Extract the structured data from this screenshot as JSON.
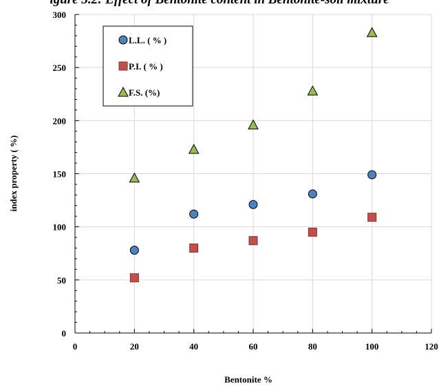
{
  "page": {
    "title": "igure 3.2: Effect of Bentonite content in Bentonite-soil mixture"
  },
  "colors": {
    "ll": "#4f81bd",
    "pi": "#c0504d",
    "fs": "#9bbb59",
    "grid": "#d9d9d9",
    "axis": "#000000"
  },
  "chart_data": {
    "type": "scatter",
    "title": "",
    "xlabel": "Bentonite %",
    "ylabel": "index property ( %)",
    "xlim": [
      0,
      120
    ],
    "ylim": [
      0,
      300
    ],
    "xticks": [
      0,
      20,
      40,
      60,
      80,
      100,
      120
    ],
    "yticks": [
      0,
      50,
      100,
      150,
      200,
      250,
      300
    ],
    "grid": true,
    "legend_position": "top-left",
    "series": [
      {
        "name": "L.L. ( % )",
        "marker": "circle",
        "color": "#4f81bd",
        "x": [
          20,
          40,
          60,
          80,
          100
        ],
        "y": [
          78,
          112,
          121,
          131,
          149
        ]
      },
      {
        "name": "P.I. ( % )",
        "marker": "square",
        "color": "#c0504d",
        "x": [
          20,
          40,
          60,
          80,
          100
        ],
        "y": [
          52,
          80,
          87,
          95,
          109
        ]
      },
      {
        "name": "F.S. (%)",
        "marker": "triangle",
        "color": "#9bbb59",
        "x": [
          20,
          40,
          60,
          80,
          100
        ],
        "y": [
          146,
          173,
          196,
          228,
          283
        ]
      }
    ]
  }
}
